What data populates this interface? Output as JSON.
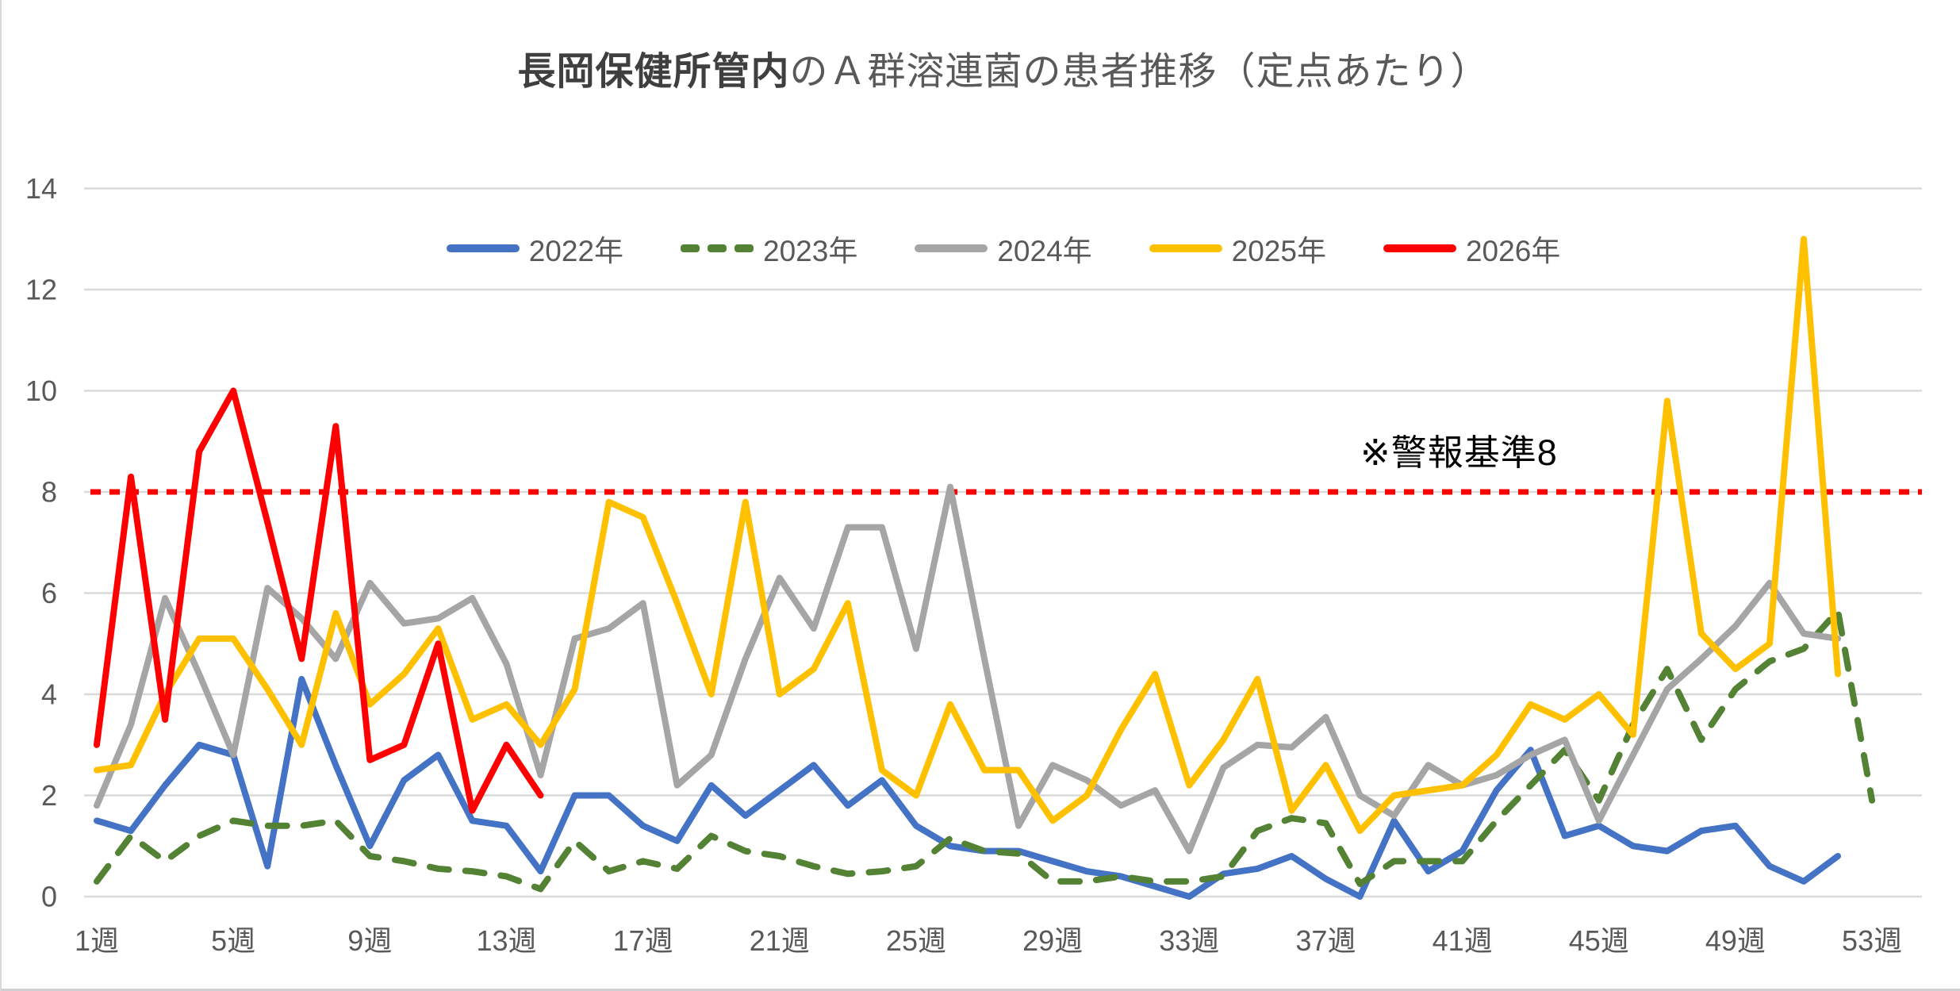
{
  "title": {
    "bold": "長岡保健所管内",
    "rest": "のＡ群溶連菌の患者推移（定点あたり）"
  },
  "annotation": {
    "text": "※警報基準8"
  },
  "colors": {
    "background": "#FFFFFF",
    "grid": "#D9D9D9",
    "axis_text": "#595959",
    "threshold": "#FF0000"
  },
  "chart_data": {
    "type": "line",
    "title": "長岡保健所管内のＡ群溶連菌の患者推移（定点あたり）",
    "xlabel": "",
    "ylabel": "",
    "x_unit": "週",
    "weeks_total": 53,
    "x_tick_weeks": [
      1,
      5,
      9,
      13,
      17,
      21,
      25,
      29,
      33,
      37,
      41,
      45,
      49,
      53
    ],
    "x_tick_labels": [
      "1週",
      "5週",
      "9週",
      "13週",
      "17週",
      "21週",
      "25週",
      "29週",
      "33週",
      "37週",
      "41週",
      "45週",
      "49週",
      "53週"
    ],
    "ylim": [
      0,
      14
    ],
    "y_ticks": [
      0,
      2,
      4,
      6,
      8,
      10,
      12,
      14
    ],
    "grid": "horizontal",
    "legend_position": "top-center",
    "threshold": {
      "value": 8,
      "label": "※警報基準8",
      "color": "#FF0000",
      "style": "dotted"
    },
    "series": [
      {
        "name": "2022年",
        "color": "#4472C4",
        "style": "solid",
        "start_week": 1,
        "values": [
          1.5,
          1.3,
          2.2,
          3.0,
          2.8,
          0.6,
          4.3,
          2.6,
          1.0,
          2.3,
          2.8,
          1.5,
          1.4,
          0.5,
          2.0,
          2.0,
          1.4,
          1.1,
          2.2,
          1.6,
          2.1,
          2.6,
          1.8,
          2.3,
          1.4,
          1.0,
          0.9,
          0.9,
          0.7,
          0.5,
          0.4,
          0.2,
          0.0,
          0.45,
          0.55,
          0.8,
          0.35,
          0.0,
          1.5,
          0.5,
          0.9,
          2.1,
          2.9,
          1.2,
          1.4,
          1.0,
          0.9,
          1.3,
          1.4,
          0.6,
          0.3,
          0.8
        ]
      },
      {
        "name": "2023年",
        "color": "#548235",
        "style": "dashed",
        "start_week": 1,
        "values": [
          0.3,
          1.2,
          0.7,
          1.2,
          1.5,
          1.4,
          1.4,
          1.5,
          0.8,
          0.7,
          0.55,
          0.5,
          0.4,
          0.15,
          1.1,
          0.5,
          0.7,
          0.55,
          1.2,
          0.9,
          0.8,
          0.6,
          0.45,
          0.5,
          0.6,
          1.15,
          0.9,
          0.85,
          0.3,
          0.3,
          0.4,
          0.3,
          0.3,
          0.4,
          1.3,
          1.55,
          1.45,
          0.25,
          0.7,
          0.7,
          0.7,
          1.5,
          2.2,
          2.9,
          1.9,
          3.4,
          4.5,
          3.1,
          4.1,
          4.65,
          4.9,
          5.65,
          1.9
        ]
      },
      {
        "name": "2024年",
        "color": "#A5A5A5",
        "style": "solid",
        "start_week": 1,
        "values": [
          1.8,
          3.4,
          5.9,
          4.4,
          2.8,
          6.1,
          5.5,
          4.7,
          6.2,
          5.4,
          5.5,
          5.9,
          4.6,
          2.4,
          5.1,
          5.3,
          5.8,
          2.2,
          2.8,
          4.7,
          6.3,
          5.3,
          7.3,
          7.3,
          4.9,
          8.1,
          4.7,
          1.4,
          2.6,
          2.3,
          1.8,
          2.1,
          0.9,
          2.55,
          3.0,
          2.95,
          3.55,
          2.0,
          1.6,
          2.6,
          2.2,
          2.4,
          2.8,
          3.1,
          1.5,
          2.8,
          4.1,
          4.7,
          5.35,
          6.2,
          5.2,
          5.1
        ]
      },
      {
        "name": "2025年",
        "color": "#FFC000",
        "style": "solid",
        "start_week": 1,
        "values": [
          2.5,
          2.6,
          4.0,
          5.1,
          5.1,
          4.1,
          3.0,
          5.6,
          3.8,
          4.4,
          5.3,
          3.5,
          3.8,
          3.0,
          4.1,
          7.8,
          7.5,
          5.8,
          4.0,
          7.8,
          4.0,
          4.5,
          5.8,
          2.5,
          2.0,
          3.8,
          2.5,
          2.5,
          1.5,
          2.0,
          3.3,
          4.4,
          2.2,
          3.1,
          4.3,
          1.7,
          2.6,
          1.3,
          2.0,
          2.1,
          2.2,
          2.8,
          3.8,
          3.5,
          4.0,
          3.2,
          9.8,
          5.2,
          4.5,
          5.0,
          13.0,
          4.4
        ]
      },
      {
        "name": "2026年",
        "color": "#FF0000",
        "style": "solid",
        "start_week": 1,
        "values": [
          3.0,
          8.3,
          3.5,
          8.8,
          10.0,
          7.4,
          4.7,
          9.3,
          2.7,
          3.0,
          5.0,
          1.7,
          3.0,
          2.0
        ]
      }
    ]
  }
}
